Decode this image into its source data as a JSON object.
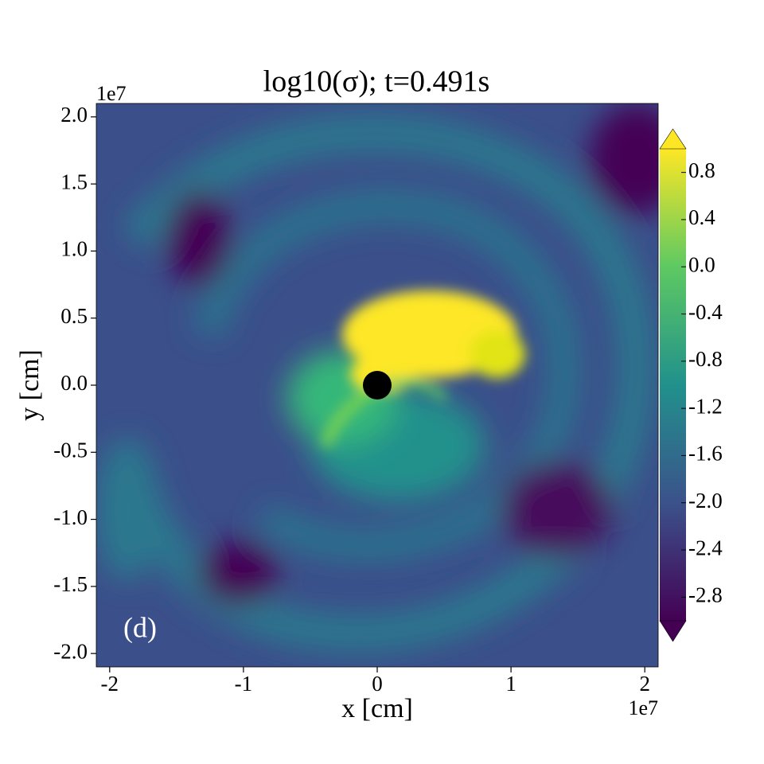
{
  "chart_data": {
    "type": "heatmap",
    "title": "log10(σ); t=0.491s",
    "xlabel": "x [cm]",
    "ylabel": "y [cm]",
    "x_offset": "1e7",
    "y_offset": "1e7",
    "annotation": "(d)",
    "marker": {
      "x": 0,
      "y": 0
    },
    "xlim": [
      -2.1,
      2.1
    ],
    "xticks": [
      -2,
      -1,
      0,
      1,
      2
    ],
    "ylim": [
      -2.1,
      2.1
    ],
    "yticks": [
      {
        "value": 2.0,
        "label": "2.0"
      },
      {
        "value": 1.5,
        "label": "1.5"
      },
      {
        "value": 1.0,
        "label": "1.0"
      },
      {
        "value": 0.5,
        "label": "0.5"
      },
      {
        "value": 0.0,
        "label": "0.0"
      },
      {
        "value": -0.5,
        "label": "-0.5"
      },
      {
        "value": -1.0,
        "label": "-1.0"
      },
      {
        "value": -1.5,
        "label": "-1.5"
      },
      {
        "value": -2.0,
        "label": "-2.0"
      }
    ],
    "colormap": [
      "#440154",
      "#3b528b",
      "#21918c",
      "#5ec962",
      "#fde725"
    ],
    "clim": [
      -3.0,
      1.0
    ],
    "cticks": [
      0.8,
      0.4,
      {
        "value": 0.0,
        "label": "0.0"
      },
      -0.4,
      -0.8,
      -1.2,
      -1.6,
      {
        "value": -2.0,
        "label": "-2.0"
      },
      -2.4,
      -2.8
    ]
  }
}
